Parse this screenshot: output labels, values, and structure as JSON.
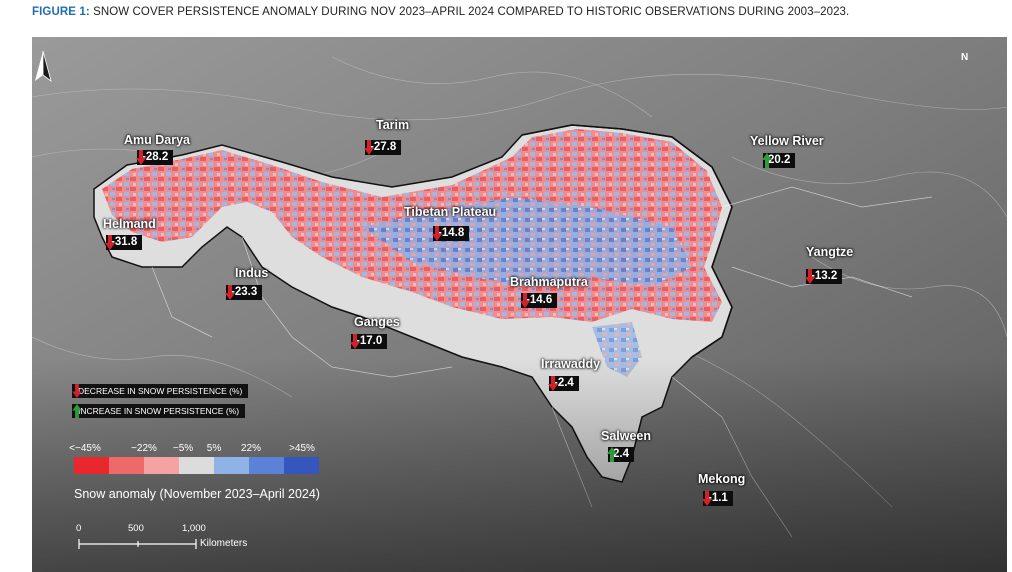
{
  "figure": {
    "label": "FIGURE 1:",
    "title": "SNOW COVER PERSISTENCE ANOMALY DURING NOV 2023–APRIL 2024 COMPARED TO HISTORIC OBSERVATIONS DURING 2003–2023."
  },
  "north_label": "N",
  "basins": [
    {
      "name": "Amu Darya",
      "value": "-28.2",
      "trend": "decrease"
    },
    {
      "name": "Tarim",
      "value": "-27.8",
      "trend": "decrease"
    },
    {
      "name": "Yellow River",
      "value": "20.2",
      "trend": "increase"
    },
    {
      "name": "Helmand",
      "value": "-31.8",
      "trend": "decrease"
    },
    {
      "name": "Tibetan Plateau",
      "value": "-14.8",
      "trend": "decrease"
    },
    {
      "name": "Yangtze",
      "value": "-13.2",
      "trend": "decrease"
    },
    {
      "name": "Indus",
      "value": "-23.3",
      "trend": "decrease"
    },
    {
      "name": "Brahmaputra",
      "value": "-14.6",
      "trend": "decrease"
    },
    {
      "name": "Ganges",
      "value": "-17.0",
      "trend": "decrease"
    },
    {
      "name": "Irrawaddy",
      "value": "-2.4",
      "trend": "decrease"
    },
    {
      "name": "Salween",
      "value": "2.4",
      "trend": "increase"
    },
    {
      "name": "Mekong",
      "value": "-1.1",
      "trend": "decrease"
    }
  ],
  "legend": {
    "decrease_label": "DECREASE IN SNOW PERSISTENCE (%)",
    "increase_label": "INCREASE IN SNOW PERSISTENCE (%)",
    "scale_ticks": [
      "<−45%",
      "−22%",
      "−5%",
      "5%",
      "22%",
      ">45%"
    ],
    "scale_colors": [
      "#e8282d",
      "#f0696a",
      "#f5a2a2",
      "#dcdcdc",
      "#8fb3e6",
      "#5b82d6",
      "#3556bd"
    ],
    "title": "Snow anomaly (November 2023–April 2024)",
    "colors": {
      "decrease": "#d1212a",
      "increase": "#2e9a3a"
    }
  },
  "scalebar": {
    "ticks": [
      "0",
      "500",
      "1,000"
    ],
    "unit": "Kilometers"
  }
}
